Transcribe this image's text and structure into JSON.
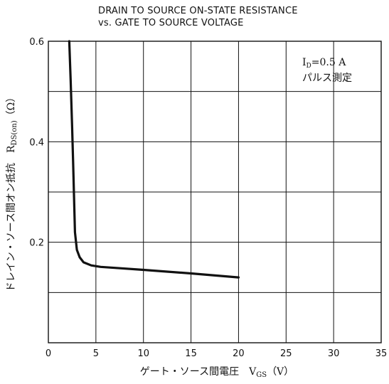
{
  "chart_data": {
    "type": "line",
    "title": "DRAIN TO SOURCE ON-STATE RESISTANCE",
    "subtitle": "vs. GATE TO SOURCE VOLTAGE",
    "xlabel": "ゲート・ソース間電圧　V",
    "xlabel_sub": "GS",
    "xlabel_unit": "（V）",
    "ylabel": "ドレイン・ソース間オン抵抗　R",
    "ylabel_sub": "DS(on)",
    "ylabel_unit": "（Ω）",
    "xlim": [
      0,
      35
    ],
    "ylim": [
      0,
      0.6
    ],
    "x_ticks": [
      0,
      5,
      10,
      15,
      20,
      25,
      30,
      35
    ],
    "x_tick_labels": [
      "0",
      "5",
      "10",
      "15",
      "20",
      "25",
      "30",
      "35"
    ],
    "y_ticks": [
      0.2,
      0.4,
      0.6
    ],
    "y_tick_labels": [
      "0.2",
      "0.4",
      "0.6"
    ],
    "grid": true,
    "annotation": {
      "line1_prefix": "I",
      "line1_sub": "D",
      "line1_rest": "=0.5 A",
      "line2": "パルス測定"
    },
    "series": [
      {
        "x": [
          2.2,
          2.35,
          2.5,
          2.6,
          2.7,
          2.8,
          3.0,
          3.3,
          3.7,
          4.5,
          5.5,
          7,
          10,
          15,
          20
        ],
        "y": [
          0.6,
          0.52,
          0.43,
          0.36,
          0.29,
          0.22,
          0.185,
          0.17,
          0.16,
          0.154,
          0.151,
          0.149,
          0.145,
          0.138,
          0.13
        ]
      }
    ]
  }
}
